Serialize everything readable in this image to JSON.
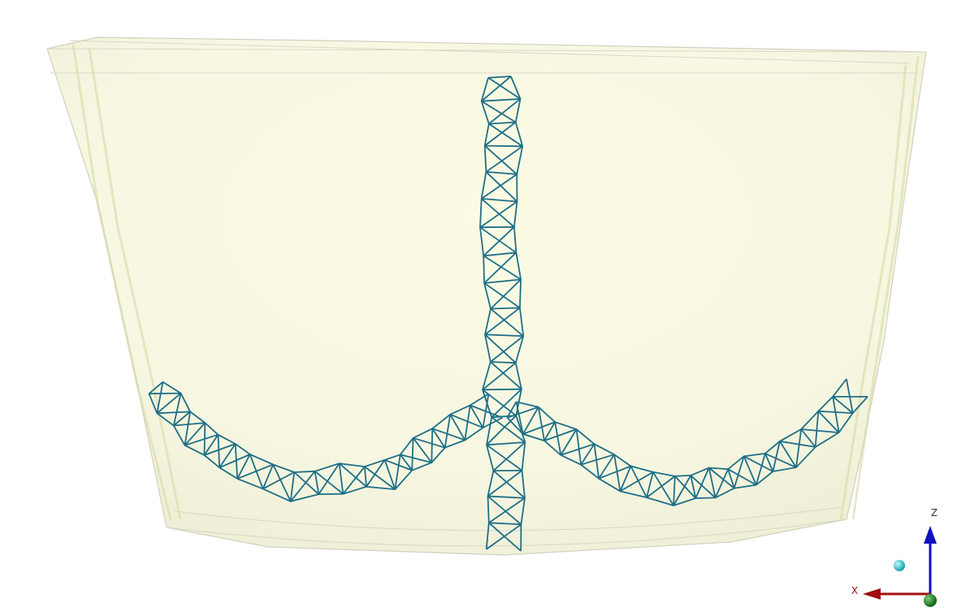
{
  "axis_triad": {
    "z_label": "Z",
    "x_label": "X"
  }
}
